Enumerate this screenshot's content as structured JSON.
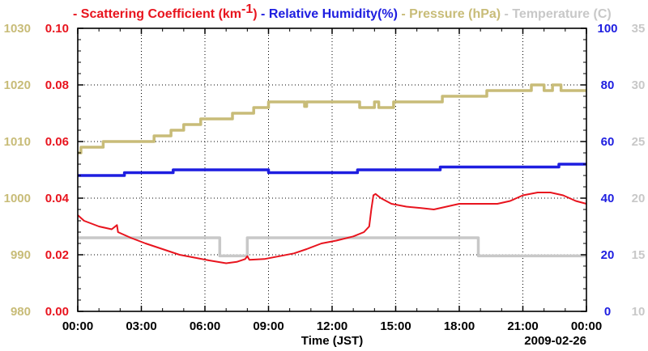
{
  "chart_data": {
    "type": "line",
    "title_parts": [
      {
        "prefix": "- ",
        "text": "Scattering Coefficient (km",
        "sup": "-1",
        "suffix": ")",
        "color": "#e8141e"
      },
      {
        "prefix": " - ",
        "text": "Relative Humidity(%)",
        "color": "#1e1ee0"
      },
      {
        "prefix": " - ",
        "text": "Pressure (hPa)",
        "color": "#c8bc78"
      },
      {
        "prefix": " - ",
        "text": "Temperature (C)",
        "color": "#c8c8c8"
      }
    ],
    "xlabel": "Time (JST)",
    "date": "2009-02-26",
    "x_range_hours": [
      0,
      24
    ],
    "x_tick_labels": [
      "00:00",
      "03:00",
      "06:00",
      "09:00",
      "12:00",
      "15:00",
      "18:00",
      "21:00",
      "00:00"
    ],
    "axes": {
      "pressure": {
        "label": "Pressure (hPa)",
        "range": [
          980,
          1030
        ],
        "ticks": [
          "980",
          "990",
          "1000",
          "1010",
          "1020",
          "1030"
        ],
        "color": "#c8bc78",
        "side": "left-outer"
      },
      "scattering": {
        "label": "Scattering Coefficient (km-1)",
        "range": [
          0,
          0.1
        ],
        "ticks": [
          "0.00",
          "0.02",
          "0.04",
          "0.06",
          "0.08",
          "0.10"
        ],
        "color": "#e8141e",
        "side": "left-inner"
      },
      "humidity": {
        "label": "Relative Humidity(%)",
        "range": [
          0,
          100
        ],
        "ticks": [
          "0",
          "20",
          "40",
          "60",
          "80",
          "100"
        ],
        "color": "#1e1ee0",
        "side": "right-inner"
      },
      "temperature": {
        "label": "Temperature (C)",
        "range": [
          10,
          35
        ],
        "ticks": [
          "10",
          "15",
          "20",
          "25",
          "30",
          "35"
        ],
        "color": "#c8c8c8",
        "side": "right-outer"
      }
    },
    "series": [
      {
        "name": "Pressure (hPa)",
        "axis": "pressure",
        "step": true,
        "color": "#c8bc78",
        "points": [
          [
            0,
            1008
          ],
          [
            0.15,
            1009
          ],
          [
            1.2,
            1010
          ],
          [
            3.6,
            1011
          ],
          [
            4.4,
            1012
          ],
          [
            5.0,
            1013
          ],
          [
            5.8,
            1014
          ],
          [
            7.3,
            1015
          ],
          [
            8.3,
            1016
          ],
          [
            9.0,
            1017
          ],
          [
            10.7,
            1016.2
          ],
          [
            10.8,
            1017
          ],
          [
            13.3,
            1016
          ],
          [
            14.0,
            1017
          ],
          [
            14.2,
            1016
          ],
          [
            14.9,
            1017
          ],
          [
            17.2,
            1018
          ],
          [
            19.3,
            1019
          ],
          [
            21.4,
            1020
          ],
          [
            22.0,
            1019
          ],
          [
            22.4,
            1020
          ],
          [
            22.8,
            1019
          ],
          [
            24,
            1019
          ]
        ]
      },
      {
        "name": "Relative Humidity(%)",
        "axis": "humidity",
        "step": true,
        "color": "#1e1ee0",
        "points": [
          [
            0,
            48
          ],
          [
            2.2,
            49
          ],
          [
            4.5,
            50
          ],
          [
            9.0,
            49
          ],
          [
            13.2,
            50
          ],
          [
            17.1,
            51
          ],
          [
            22.7,
            52
          ],
          [
            24,
            52
          ]
        ]
      },
      {
        "name": "Temperature (C)",
        "axis": "temperature",
        "step": true,
        "color": "#c8c8c8",
        "points": [
          [
            0,
            16.5
          ],
          [
            6.7,
            14.9
          ],
          [
            8.0,
            16.5
          ],
          [
            18.9,
            14.9
          ],
          [
            24,
            14.9
          ]
        ]
      },
      {
        "name": "Scattering Coefficient",
        "axis": "scattering",
        "step": false,
        "color": "#e8141e",
        "points": [
          [
            0,
            0.034
          ],
          [
            0.3,
            0.032
          ],
          [
            1.0,
            0.03
          ],
          [
            1.6,
            0.029
          ],
          [
            1.85,
            0.0305
          ],
          [
            1.9,
            0.028
          ],
          [
            2.5,
            0.026
          ],
          [
            3.2,
            0.024
          ],
          [
            4.0,
            0.022
          ],
          [
            4.8,
            0.02
          ],
          [
            5.5,
            0.019
          ],
          [
            6.2,
            0.018
          ],
          [
            7.0,
            0.017
          ],
          [
            7.5,
            0.0175
          ],
          [
            7.9,
            0.0185
          ],
          [
            8.0,
            0.0195
          ],
          [
            8.1,
            0.0182
          ],
          [
            8.8,
            0.0185
          ],
          [
            9.5,
            0.0195
          ],
          [
            10.2,
            0.0205
          ],
          [
            10.8,
            0.022
          ],
          [
            11.5,
            0.024
          ],
          [
            12.2,
            0.025
          ],
          [
            13.0,
            0.0265
          ],
          [
            13.5,
            0.028
          ],
          [
            13.75,
            0.03
          ],
          [
            13.85,
            0.036
          ],
          [
            13.95,
            0.041
          ],
          [
            14.05,
            0.0415
          ],
          [
            14.3,
            0.04
          ],
          [
            14.8,
            0.038
          ],
          [
            15.5,
            0.037
          ],
          [
            16.2,
            0.0365
          ],
          [
            16.8,
            0.036
          ],
          [
            17.4,
            0.037
          ],
          [
            18.0,
            0.038
          ],
          [
            19.0,
            0.038
          ],
          [
            19.8,
            0.038
          ],
          [
            20.4,
            0.039
          ],
          [
            21.0,
            0.041
          ],
          [
            21.7,
            0.042
          ],
          [
            22.3,
            0.042
          ],
          [
            22.9,
            0.041
          ],
          [
            23.5,
            0.039
          ],
          [
            24,
            0.038
          ]
        ]
      }
    ],
    "grid": true
  }
}
